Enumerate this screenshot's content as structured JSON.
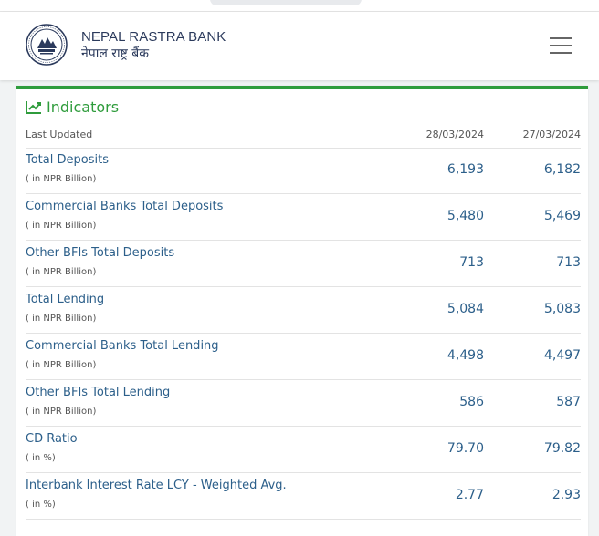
{
  "header": {
    "brand_en": "NEPAL RASTRA BANK",
    "brand_np": "नेपाल राष्ट्र बैंक",
    "logo_icon": "nrb-seal-icon",
    "menu_icon": "hamburger-menu-icon"
  },
  "card": {
    "title": "Indicators",
    "title_icon": "line-chart-icon",
    "accent_color": "#2f9c3c",
    "columns": {
      "label": "Last Updated",
      "date1": "28/03/2024",
      "date2": "27/03/2024"
    },
    "rows": [
      {
        "name": "Total Deposits",
        "unit": "( in NPR Billion)",
        "v1": "6,193",
        "v2": "6,182"
      },
      {
        "name": "Commercial Banks Total Deposits",
        "unit": "( in NPR Billion)",
        "v1": "5,480",
        "v2": "5,469"
      },
      {
        "name": "Other BFIs Total Deposits",
        "unit": "( in NPR Billion)",
        "v1": "713",
        "v2": "713"
      },
      {
        "name": "Total Lending",
        "unit": "( in NPR Billion)",
        "v1": "5,084",
        "v2": "5,083"
      },
      {
        "name": "Commercial Banks Total Lending",
        "unit": "( in NPR Billion)",
        "v1": "4,498",
        "v2": "4,497"
      },
      {
        "name": "Other BFIs Total Lending",
        "unit": "( in NPR Billion)",
        "v1": "586",
        "v2": "587"
      },
      {
        "name": "CD Ratio",
        "unit": "( in %)",
        "v1": "79.70",
        "v2": "79.82"
      },
      {
        "name": "Interbank Interest Rate LCY - Weighted Avg.",
        "unit": "( in %)",
        "v1": "2.77",
        "v2": "2.93"
      }
    ]
  }
}
